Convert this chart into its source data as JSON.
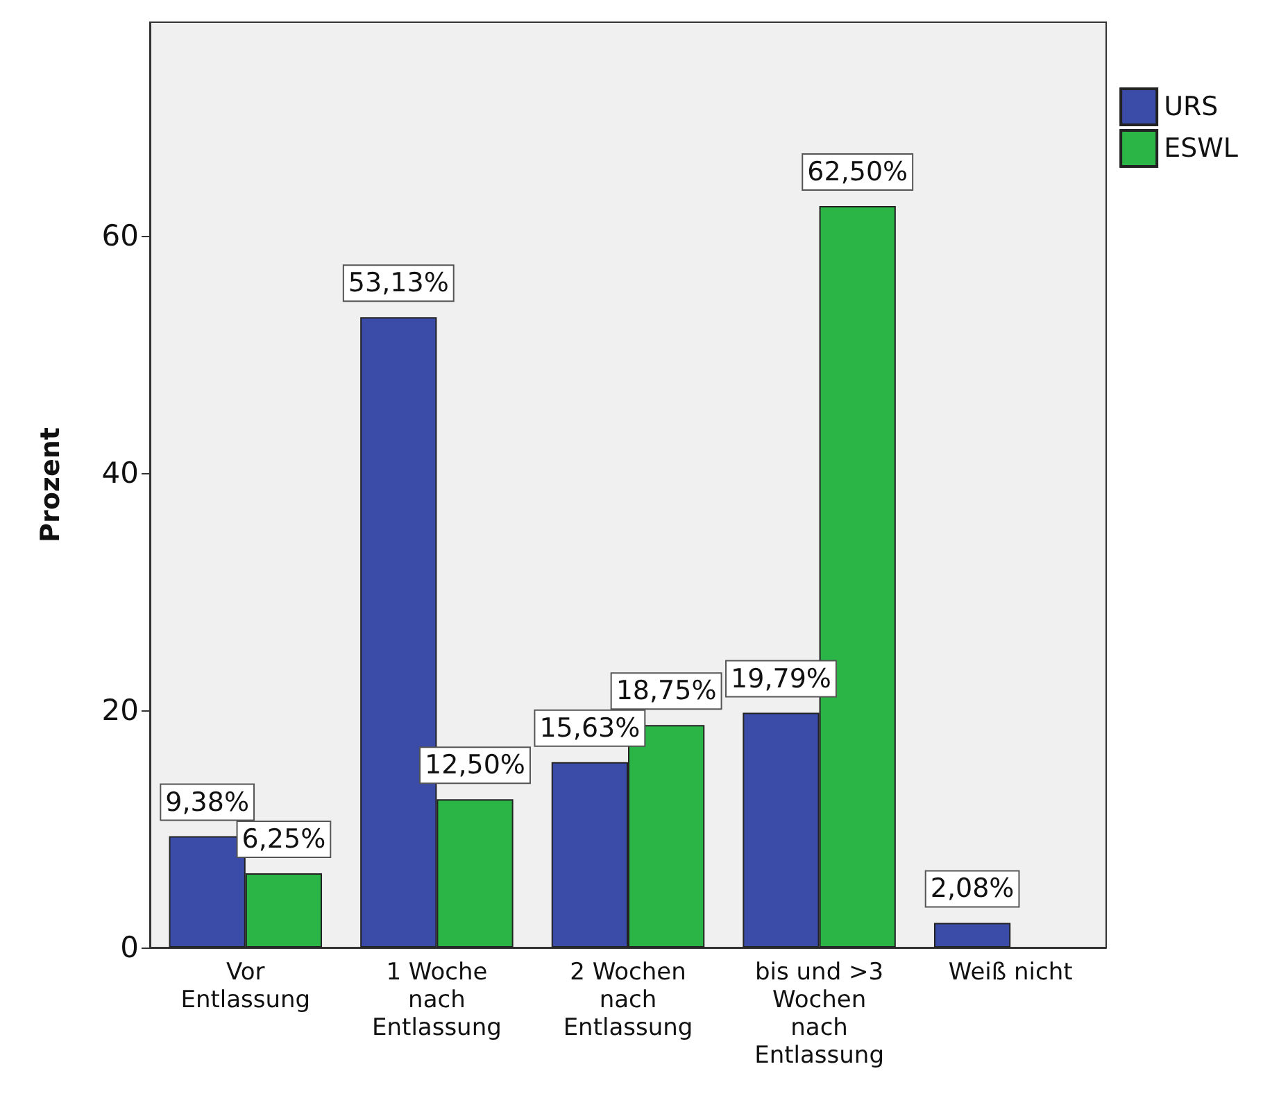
{
  "chart_data": {
    "type": "bar",
    "categories": [
      "Vor\nEntlassung",
      "1 Woche\nnach\nEntlassung",
      "2 Wochen\nnach\nEntlassung",
      "bis und >3\nWochen\nnach\nEntlassung",
      "Weiß nicht"
    ],
    "series": [
      {
        "name": "URS",
        "color": "#3a4ba8",
        "values": [
          9.38,
          53.13,
          15.63,
          19.79,
          2.08
        ],
        "value_labels": [
          "9,38%",
          "53,13%",
          "15,63%",
          "19,79%",
          "2,08%"
        ]
      },
      {
        "name": "ESWL",
        "color": "#2bb546",
        "values": [
          6.25,
          12.5,
          18.75,
          62.5,
          null
        ],
        "value_labels": [
          "6,25%",
          "12,50%",
          "18,75%",
          "62,50%",
          null
        ]
      }
    ],
    "ylabel": "Prozent",
    "ylim": [
      0,
      78
    ],
    "yticks": [
      0,
      20,
      40,
      60
    ],
    "grid": false,
    "legend": "top right"
  }
}
